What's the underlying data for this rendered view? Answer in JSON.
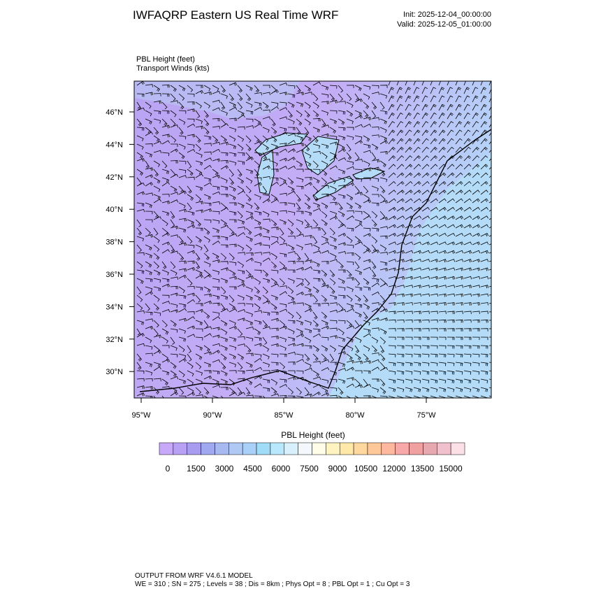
{
  "header": {
    "title": "IWFAQRP Eastern US Real Time WRF",
    "init": "Init: 2025-12-04_00:00:00",
    "valid": "Valid: 2025-12-05_01:00:00"
  },
  "fields": {
    "primary": "PBL Height   (feet)",
    "secondary": "Transport Winds   (kts)"
  },
  "map": {
    "lat_labels": [
      "46°N",
      "44°N",
      "42°N",
      "40°N",
      "38°N",
      "36°N",
      "34°N",
      "32°N",
      "30°N"
    ],
    "lon_labels": [
      "95°W",
      "90°W",
      "85°W",
      "80°W",
      "75°W"
    ]
  },
  "colorbar": {
    "title": "PBL Height  (feet)",
    "labels": [
      "0",
      "1500",
      "3000",
      "4500",
      "6000",
      "7500",
      "9000",
      "10500",
      "12000",
      "13500",
      "15000"
    ],
    "colors": [
      "#c8a8f8",
      "#b8a0f4",
      "#a89cf0",
      "#a0a8f0",
      "#a8b8f0",
      "#b0c8f4",
      "#a8d0f8",
      "#a0dcf8",
      "#b8e8fc",
      "#d8f0fc",
      "#f4f8fc",
      "#fffce8",
      "#fff4c0",
      "#ffe8a8",
      "#ffd8a0",
      "#ffc898",
      "#ffb8a0",
      "#f8a8a8",
      "#f0a0a0",
      "#e8a8b0",
      "#f0c0cc",
      "#fce0e8"
    ]
  },
  "footer": {
    "line1": "OUTPUT FROM WRF V4.6.1 MODEL",
    "line2": "WE = 310 ; SN = 275 ; Levels = 38 ; Dis = 8km ; Phys Opt = 8 ; PBL Opt = 1 ; Cu Opt = 3"
  }
}
